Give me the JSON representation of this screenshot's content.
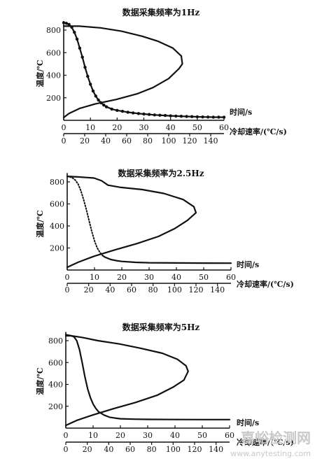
{
  "chart_data": [
    {
      "type": "line",
      "title": "数据采集频率为1Hz",
      "ylabel": "温度/℃",
      "time_axis": {
        "label": "时间/s",
        "ticks": [
          0,
          10,
          20,
          30,
          40,
          50,
          60
        ],
        "range": [
          0,
          60
        ]
      },
      "rate_axis": {
        "label": "冷却速率/(℃/s)",
        "ticks": [
          0,
          20,
          40,
          60,
          80,
          100,
          120,
          140
        ],
        "range": [
          0,
          150
        ]
      },
      "y_ticks": [
        200,
        400,
        600,
        800
      ],
      "ylim": [
        0,
        880
      ],
      "series": [
        {
          "axis": "time",
          "style": "solid-markers",
          "points": [
            [
              0,
              865
            ],
            [
              1,
              860
            ],
            [
              2,
              850
            ],
            [
              3,
              825
            ],
            [
              4,
              780
            ],
            [
              5,
              720
            ],
            [
              6,
              640
            ],
            [
              7,
              560
            ],
            [
              8,
              470
            ],
            [
              9,
              390
            ],
            [
              10,
              320
            ],
            [
              11,
              260
            ],
            [
              12,
              215
            ],
            [
              13,
              180
            ],
            [
              14,
              155
            ],
            [
              15,
              135
            ],
            [
              16,
              120
            ],
            [
              18,
              100
            ],
            [
              20,
              88
            ],
            [
              22,
              80
            ],
            [
              24,
              72
            ],
            [
              26,
              66
            ],
            [
              28,
              60
            ],
            [
              30,
              56
            ],
            [
              32,
              52
            ],
            [
              34,
              48
            ],
            [
              36,
              45
            ],
            [
              38,
              43
            ],
            [
              40,
              40
            ],
            [
              42,
              38
            ],
            [
              44,
              36
            ],
            [
              46,
              34
            ],
            [
              48,
              33
            ],
            [
              50,
              31
            ],
            [
              52,
              30
            ],
            [
              54,
              29
            ],
            [
              56,
              28
            ],
            [
              58,
              28
            ],
            [
              60,
              27
            ]
          ]
        },
        {
          "axis": "rate",
          "style": "solid",
          "points": [
            [
              0,
              25
            ],
            [
              5,
              60
            ],
            [
              15,
              105
            ],
            [
              30,
              145
            ],
            [
              50,
              185
            ],
            [
              70,
              235
            ],
            [
              85,
              290
            ],
            [
              100,
              370
            ],
            [
              110,
              460
            ],
            [
              113,
              500
            ],
            [
              112,
              570
            ],
            [
              104,
              640
            ],
            [
              90,
              700
            ],
            [
              75,
              745
            ],
            [
              55,
              790
            ],
            [
              35,
              820
            ],
            [
              15,
              835
            ],
            [
              5,
              835
            ],
            [
              0,
              835
            ]
          ]
        }
      ]
    },
    {
      "type": "line",
      "title": "数据采集频率为2.5Hz",
      "ylabel": "温度/℃",
      "time_axis": {
        "label": "时间/s",
        "ticks": [
          0,
          10,
          20,
          30,
          40,
          50,
          60
        ],
        "range": [
          0,
          60
        ]
      },
      "rate_axis": {
        "label": "冷却速率/(℃/s)",
        "ticks": [
          0,
          20,
          40,
          60,
          80,
          100,
          120,
          140
        ],
        "range": [
          0,
          150
        ]
      },
      "y_ticks": [
        200,
        400,
        600,
        800
      ],
      "ylim": [
        0,
        880
      ],
      "series": [
        {
          "axis": "time",
          "style": "dotted",
          "points": [
            [
              0,
              850
            ],
            [
              1,
              845
            ],
            [
              2,
              835
            ],
            [
              3,
              815
            ],
            [
              4,
              780
            ],
            [
              5,
              720
            ],
            [
              6,
              640
            ],
            [
              7,
              550
            ],
            [
              8,
              450
            ],
            [
              9,
              350
            ],
            [
              10,
              265
            ],
            [
              11,
              200
            ],
            [
              12,
              160
            ],
            [
              13,
              130
            ]
          ]
        },
        {
          "axis": "time",
          "style": "solid",
          "points": [
            [
              13,
              130
            ],
            [
              14,
              115
            ],
            [
              16,
              95
            ],
            [
              18,
              85
            ],
            [
              20,
              78
            ],
            [
              25,
              70
            ],
            [
              30,
              66
            ],
            [
              40,
              64
            ],
            [
              50,
              63
            ],
            [
              60,
              62
            ]
          ]
        },
        {
          "axis": "rate",
          "style": "solid",
          "points": [
            [
              0,
              25
            ],
            [
              10,
              70
            ],
            [
              25,
              125
            ],
            [
              45,
              185
            ],
            [
              65,
              240
            ],
            [
              85,
              305
            ],
            [
              100,
              375
            ],
            [
              112,
              450
            ],
            [
              120,
              520
            ],
            [
              118,
              575
            ],
            [
              108,
              640
            ],
            [
              90,
              695
            ],
            [
              70,
              730
            ],
            [
              50,
              750
            ],
            [
              38,
              770
            ],
            [
              32,
              810
            ],
            [
              25,
              835
            ],
            [
              10,
              845
            ],
            [
              0,
              850
            ]
          ]
        }
      ]
    },
    {
      "type": "line",
      "title": "数据采集频率为5Hz",
      "ylabel": "温度/℃",
      "time_axis": {
        "label": "时间/s",
        "ticks": [
          0,
          10,
          20,
          30,
          40,
          50,
          60
        ],
        "range": [
          0,
          60
        ]
      },
      "rate_axis": {
        "label": "冷却速率/(℃/s)",
        "ticks": [
          0,
          20,
          40,
          60,
          80,
          100,
          120,
          140
        ],
        "range": [
          0,
          150
        ]
      },
      "y_ticks": [
        200,
        400,
        600,
        800
      ],
      "ylim": [
        0,
        880
      ],
      "series": [
        {
          "axis": "time",
          "style": "solid",
          "points": [
            [
              0,
              855
            ],
            [
              1,
              850
            ],
            [
              2,
              845
            ],
            [
              3,
              835
            ],
            [
              4,
              800
            ],
            [
              5,
              720
            ],
            [
              6,
              600
            ],
            [
              7,
              470
            ],
            [
              8,
              360
            ],
            [
              9,
              280
            ],
            [
              10,
              220
            ],
            [
              11,
              180
            ],
            [
              12,
              150
            ],
            [
              14,
              120
            ],
            [
              16,
              100
            ],
            [
              18,
              92
            ],
            [
              20,
              86
            ],
            [
              25,
              82
            ],
            [
              30,
              80
            ],
            [
              40,
              79
            ],
            [
              50,
              78
            ],
            [
              60,
              78
            ]
          ]
        },
        {
          "axis": "rate",
          "style": "solid",
          "points": [
            [
              0,
              25
            ],
            [
              10,
              70
            ],
            [
              25,
              120
            ],
            [
              45,
              180
            ],
            [
              65,
              235
            ],
            [
              85,
              300
            ],
            [
              100,
              375
            ],
            [
              110,
              440
            ],
            [
              114,
              520
            ],
            [
              112,
              570
            ],
            [
              104,
              630
            ],
            [
              90,
              685
            ],
            [
              70,
              730
            ],
            [
              50,
              770
            ],
            [
              30,
              800
            ],
            [
              15,
              830
            ],
            [
              5,
              845
            ],
            [
              0,
              845
            ]
          ]
        }
      ]
    }
  ],
  "watermark": {
    "line1": "嘉峪检测网",
    "line2": "www.anytesting.com"
  }
}
